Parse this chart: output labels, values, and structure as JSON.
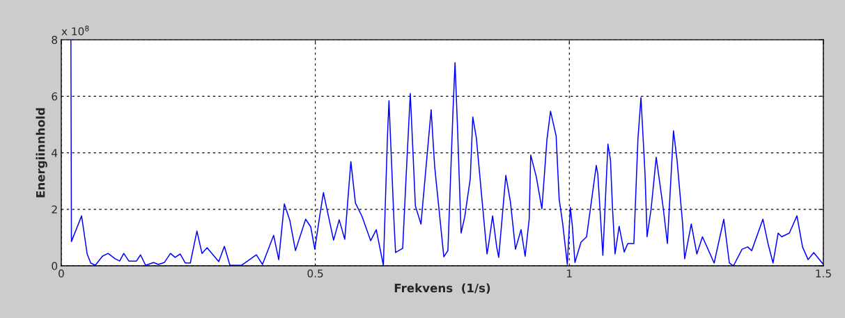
{
  "chart_data": {
    "type": "line",
    "xlabel": "Frekvens  (1/s)",
    "ylabel": "Energiinnhold",
    "annotations": [
      "x 10$^{8}$"
    ],
    "xlim": [
      0,
      1.5
    ],
    "xticks": [
      0,
      0.5,
      1,
      1.5
    ],
    "ylim": [
      0,
      8
    ],
    "yticks": [
      0,
      2,
      4,
      6,
      8
    ],
    "grid": true,
    "legend": false,
    "series": [
      {
        "color": "#0000ff",
        "line_style": "solid",
        "marker": "none",
        "x": [
          0.019,
          0.02,
          0.04,
          0.051,
          0.058,
          0.067,
          0.081,
          0.092,
          0.106,
          0.115,
          0.123,
          0.133,
          0.148,
          0.156,
          0.166,
          0.182,
          0.191,
          0.203,
          0.215,
          0.224,
          0.234,
          0.244,
          0.254,
          0.267,
          0.277,
          0.287,
          0.31,
          0.321,
          0.332,
          0.355,
          0.373,
          0.384,
          0.396,
          0.418,
          0.428,
          0.439,
          0.45,
          0.461,
          0.481,
          0.491,
          0.499,
          0.51,
          0.516,
          0.536,
          0.547,
          0.558,
          0.57,
          0.579,
          0.592,
          0.609,
          0.62,
          0.634,
          0.642,
          0.645,
          0.655,
          0.658,
          0.672,
          0.679,
          0.687,
          0.697,
          0.708,
          0.728,
          0.735,
          0.753,
          0.761,
          0.771,
          0.775,
          0.78,
          0.787,
          0.794,
          0.805,
          0.81,
          0.817,
          0.827,
          0.838,
          0.841,
          0.849,
          0.857,
          0.861,
          0.875,
          0.884,
          0.894,
          0.905,
          0.913,
          0.921,
          0.924,
          0.935,
          0.946,
          0.956,
          0.963,
          0.974,
          0.98,
          0.987,
          0.996,
          1.002,
          1.006,
          1.011,
          1.023,
          1.034,
          1.053,
          1.056,
          1.066,
          1.076,
          1.081,
          1.085,
          1.09,
          1.098,
          1.108,
          1.115,
          1.127,
          1.135,
          1.141,
          1.149,
          1.153,
          1.161,
          1.171,
          1.185,
          1.193,
          1.205,
          1.212,
          1.223,
          1.227,
          1.24,
          1.251,
          1.262,
          1.285,
          1.304,
          1.315,
          1.323,
          1.34,
          1.351,
          1.359,
          1.381,
          1.391,
          1.401,
          1.411,
          1.418,
          1.433,
          1.448,
          1.459,
          1.47,
          1.481,
          1.5
        ],
        "values": [
          8,
          0.86,
          1.77,
          0.42,
          0.1,
          0.02,
          0.34,
          0.44,
          0.25,
          0.17,
          0.44,
          0.17,
          0.17,
          0.39,
          0.02,
          0.12,
          0.05,
          0.12,
          0.44,
          0.3,
          0.42,
          0.1,
          0.1,
          1.23,
          0.44,
          0.64,
          0.15,
          0.69,
          0.02,
          0.02,
          0.25,
          0.39,
          0.05,
          1.08,
          0.22,
          2.19,
          1.6,
          0.54,
          1.65,
          1.38,
          0.59,
          1.92,
          2.59,
          0.91,
          1.63,
          0.94,
          3.69,
          2.22,
          1.75,
          0.89,
          1.28,
          0.02,
          4.56,
          5.84,
          1.53,
          0.47,
          0.62,
          3.25,
          6.1,
          2.12,
          1.48,
          5.52,
          3.5,
          0.32,
          0.54,
          5.47,
          7.19,
          4.85,
          1.16,
          1.72,
          3.08,
          5.27,
          4.53,
          2.56,
          0.42,
          0.74,
          1.77,
          0.67,
          0.3,
          3.2,
          2.27,
          0.59,
          1.28,
          0.34,
          1.65,
          3.92,
          3.15,
          2.02,
          4.48,
          5.47,
          4.6,
          2.36,
          1.48,
          0.05,
          2.07,
          1.4,
          0.12,
          0.84,
          1.03,
          3.55,
          3.25,
          0.37,
          4.31,
          3.74,
          2.02,
          0.42,
          1.4,
          0.49,
          0.79,
          0.79,
          4.48,
          5.96,
          3.25,
          1.03,
          2.02,
          3.84,
          2.02,
          0.79,
          4.78,
          3.74,
          1.48,
          0.25,
          1.48,
          0.42,
          1.03,
          0.1,
          1.65,
          0.1,
          0,
          0.59,
          0.67,
          0.54,
          1.65,
          0.79,
          0.1,
          1.16,
          1.03,
          1.16,
          1.77,
          0.67,
          0.22,
          0.47,
          0.05
        ]
      }
    ]
  }
}
